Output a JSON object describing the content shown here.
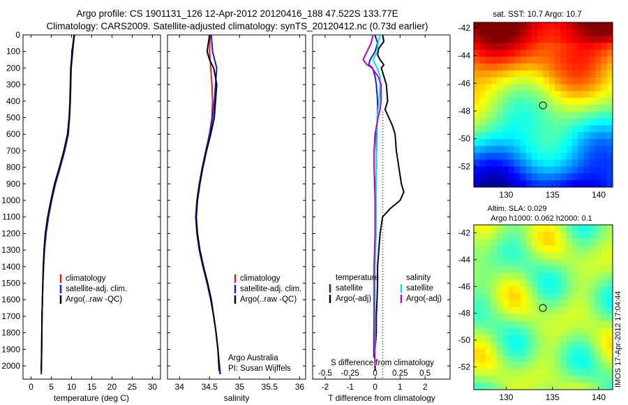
{
  "figure": {
    "title_line1": "Argo profile: CS 1901131_126 12-Apr-2012 20120416_188 47.522S 133.77E",
    "title_line2": "Climatology: CARS2009. Satellite-adjusted climatology: synTS_20120412.nc (0.73d earlier)",
    "credit_line1": "Argo Australia",
    "credit_line2": "PI: Susan Wijffels",
    "imos_stamp": "IMOS 17-Apr-2012 17:04:44",
    "sst_title": "sat. SST: 10.7 Argo: 10.7",
    "sla_title_line1": "Altim. SLA: 0.029",
    "sla_title_line2": "Argo h1000: 0.062 h2000: 0.1"
  },
  "colors": {
    "climatology": "#e8191b",
    "satellite": "#1a1adb",
    "argo": "#000000",
    "t_sat": "#00e5e5",
    "s_argo": "#c000c0"
  },
  "chart_data": [
    {
      "type": "line",
      "panel": "temperature",
      "xlabel": "temperature (deg C)",
      "ylabel": "depth",
      "xlim": [
        -2,
        32
      ],
      "ylim": [
        2080,
        0
      ],
      "xticks": [
        0,
        5,
        10,
        15,
        20,
        25,
        30
      ],
      "yticks": [
        0,
        100,
        200,
        300,
        400,
        500,
        600,
        700,
        800,
        900,
        1000,
        1100,
        1200,
        1300,
        1400,
        1500,
        1600,
        1700,
        1800,
        1900,
        2000
      ],
      "legend": [
        "climatology",
        "satellite-adj. clim.",
        "Argo(..raw -QC)"
      ],
      "series": [
        {
          "name": "climatology",
          "color_key": "climatology",
          "depth": [
            0,
            50,
            100,
            150,
            200,
            300,
            400,
            500,
            600,
            700,
            800,
            900,
            1000,
            1100,
            1200,
            1300,
            1400,
            1500,
            1700,
            1900,
            2050
          ],
          "values": [
            10.6,
            10.4,
            10.2,
            10.1,
            9.9,
            9.8,
            9.7,
            9.5,
            9.2,
            8.3,
            7.2,
            6.0,
            5.0,
            4.3,
            3.7,
            3.3,
            3.1,
            2.9,
            2.7,
            2.6,
            2.5
          ]
        },
        {
          "name": "satellite-adj. clim.",
          "color_key": "satellite",
          "depth": [
            0,
            50,
            100,
            150,
            200,
            300,
            400,
            500,
            600,
            700,
            800,
            900,
            1000,
            1100,
            1200,
            1300,
            1400,
            1500,
            1700,
            1900,
            2050
          ],
          "values": [
            10.7,
            10.5,
            10.3,
            10.1,
            9.9,
            9.8,
            9.7,
            9.5,
            9.2,
            8.3,
            7.2,
            6.0,
            5.1,
            4.3,
            3.7,
            3.3,
            3.1,
            2.9,
            2.7,
            2.6,
            2.5
          ]
        },
        {
          "name": "Argo(..raw -QC)",
          "color_key": "argo",
          "depth": [
            0,
            50,
            100,
            150,
            200,
            300,
            400,
            500,
            600,
            700,
            800,
            900,
            1000,
            1100,
            1200,
            1300,
            1400,
            1500,
            1700,
            1900,
            2030
          ],
          "values": [
            10.7,
            10.4,
            10.1,
            10.0,
            9.8,
            9.7,
            9.6,
            9.4,
            9.0,
            8.1,
            7.0,
            5.8,
            4.9,
            4.1,
            3.5,
            3.2,
            3.0,
            2.9,
            2.7,
            2.6,
            2.5
          ]
        }
      ]
    },
    {
      "type": "line",
      "panel": "salinity",
      "xlabel": "salinity",
      "ylabel": "depth",
      "xlim": [
        33.8,
        36.1
      ],
      "ylim": [
        2080,
        0
      ],
      "xticks": [
        34,
        34.5,
        35,
        35.5,
        36
      ],
      "legend": [
        "climatology",
        "satellite-adj. clim.",
        "Argo(..raw -QC)"
      ],
      "series": [
        {
          "name": "climatology",
          "color_key": "climatology",
          "depth": [
            0,
            100,
            200,
            300,
            400,
            500,
            600,
            700,
            800,
            900,
            1000,
            1100,
            1200,
            1300,
            1400,
            1500,
            1600,
            1700,
            1800,
            1900,
            2050
          ],
          "values": [
            34.51,
            34.5,
            34.52,
            34.54,
            34.55,
            34.54,
            34.5,
            34.44,
            34.38,
            34.33,
            34.29,
            34.27,
            34.29,
            34.33,
            34.39,
            34.46,
            34.52,
            34.57,
            34.61,
            34.64,
            34.67
          ]
        },
        {
          "name": "satellite-adj. clim.",
          "color_key": "satellite",
          "depth": [
            0,
            100,
            200,
            300,
            400,
            500,
            600,
            700,
            800,
            900,
            1000,
            1100,
            1200,
            1300,
            1400,
            1500,
            1600,
            1700,
            1800,
            1900,
            2050
          ],
          "values": [
            34.53,
            34.55,
            34.62,
            34.6,
            34.58,
            34.55,
            34.5,
            34.44,
            34.38,
            34.33,
            34.29,
            34.27,
            34.29,
            34.33,
            34.39,
            34.46,
            34.52,
            34.57,
            34.61,
            34.64,
            34.68
          ]
        },
        {
          "name": "Argo(..raw -QC)",
          "color_key": "argo",
          "depth": [
            0,
            100,
            150,
            200,
            300,
            400,
            500,
            600,
            700,
            800,
            900,
            1000,
            1100,
            1200,
            1300,
            1400,
            1500,
            1600,
            1700,
            1800,
            1900,
            2030
          ],
          "values": [
            34.5,
            34.46,
            34.5,
            34.57,
            34.62,
            34.6,
            34.58,
            34.52,
            34.45,
            34.39,
            34.34,
            34.3,
            34.28,
            34.3,
            34.34,
            34.4,
            34.47,
            34.53,
            34.57,
            34.61,
            34.64,
            34.66
          ]
        }
      ]
    },
    {
      "type": "line",
      "panel": "difference",
      "xlabel": "T difference from climatology",
      "xlabel_top": "S difference from climatology",
      "ylabel": "depth",
      "xlim": [
        -2.5,
        3.0
      ],
      "ylim": [
        2080,
        0
      ],
      "xticks": [
        -2,
        -1,
        0,
        1,
        2
      ],
      "xtick_labels": [
        "-2",
        "-1",
        "0",
        "1",
        "2"
      ],
      "s_ticks": [
        -0.5,
        -0.25,
        0,
        0.25,
        0.5
      ],
      "s_tick_labels": [
        "-0.5",
        "-0.25",
        "0",
        "0.25",
        "0.5"
      ],
      "s_scale": 4,
      "legend_temperature_title": "temperature",
      "legend_salinity_title": "salinity",
      "legend_temperature": [
        "satellite",
        "Argo(-adj)"
      ],
      "legend_salinity": [
        "satellite",
        "Argo(-adj)"
      ],
      "series": [
        {
          "name": "T satellite",
          "color_key": "satellite",
          "depth": [
            0,
            50,
            100,
            150,
            180,
            200,
            250,
            300,
            400,
            500,
            600,
            800,
            1000,
            1200,
            1400,
            1600,
            1800,
            1950
          ],
          "values": [
            0.0,
            0.1,
            0.0,
            -0.2,
            -0.25,
            -0.1,
            0.0,
            0.05,
            0.1,
            0.1,
            0.05,
            0.05,
            0.0,
            0.0,
            0.0,
            0.0,
            -0.05,
            -0.05
          ]
        },
        {
          "name": "T Argo(-adj)",
          "color_key": "argo",
          "depth": [
            0,
            40,
            80,
            120,
            150,
            180,
            200,
            250,
            300,
            400,
            450,
            500,
            550,
            600,
            700,
            800,
            900,
            950,
            1000,
            1050,
            1100,
            1200,
            1300,
            1400,
            1500,
            1600,
            1700,
            1800,
            1900,
            2000,
            2030
          ],
          "values": [
            0.3,
            0.35,
            0.15,
            0.1,
            0.2,
            0.35,
            0.25,
            0.35,
            0.45,
            0.5,
            0.4,
            0.55,
            0.7,
            0.8,
            0.85,
            0.95,
            1.05,
            1.15,
            1.0,
            0.6,
            0.3,
            0.2,
            0.15,
            0.1,
            0.1,
            0.08,
            0.05,
            0.05,
            0.0,
            0.0,
            0.0
          ]
        },
        {
          "name": "S satellite",
          "color_key": "t_sat",
          "depth": [
            0,
            50,
            100,
            150,
            200,
            250,
            300,
            400,
            500,
            600,
            800,
            1000,
            1200,
            1400,
            1600,
            1800,
            2000
          ],
          "values": [
            0.05,
            0.03,
            0.02,
            -0.02,
            0.02,
            0.05,
            0.05,
            0.04,
            0.02,
            0.02,
            0.01,
            0.01,
            0.01,
            0.0,
            0.0,
            0.0,
            0.0
          ]
        },
        {
          "name": "S Argo(-adj)",
          "color_key": "s_argo",
          "depth": [
            0,
            50,
            100,
            150,
            180,
            200,
            250,
            300,
            400,
            450,
            500,
            600,
            700,
            800,
            1000,
            1200,
            1400,
            1600,
            1800,
            2000
          ],
          "values": [
            -0.02,
            -0.04,
            -0.08,
            -0.12,
            -0.08,
            -0.03,
            0.03,
            0.06,
            0.06,
            0.05,
            0.03,
            0.0,
            -0.01,
            -0.01,
            0.0,
            0.0,
            -0.01,
            -0.01,
            -0.01,
            0.0
          ]
        }
      ]
    },
    {
      "type": "heatmap",
      "panel": "sst",
      "title": "sat. SST: 10.7 Argo: 10.7",
      "xlim": [
        126.5,
        141.5
      ],
      "ylim": [
        -53.5,
        -41.6
      ],
      "xticks": [
        130,
        135,
        140
      ],
      "yticks": [
        -42,
        -44,
        -46,
        -48,
        -50,
        -52
      ],
      "marker": {
        "lon": 133.77,
        "lat": -47.52
      }
    },
    {
      "type": "heatmap",
      "panel": "sla",
      "title": "Altim. SLA: 0.029",
      "xlim": [
        126.5,
        141.5
      ],
      "ylim": [
        -53.7,
        -41.4
      ],
      "xticks": [
        130,
        135,
        140
      ],
      "yticks": [
        -42,
        -44,
        -46,
        -48,
        -50,
        -52
      ],
      "marker": {
        "lon": 133.77,
        "lat": -47.52
      }
    }
  ]
}
